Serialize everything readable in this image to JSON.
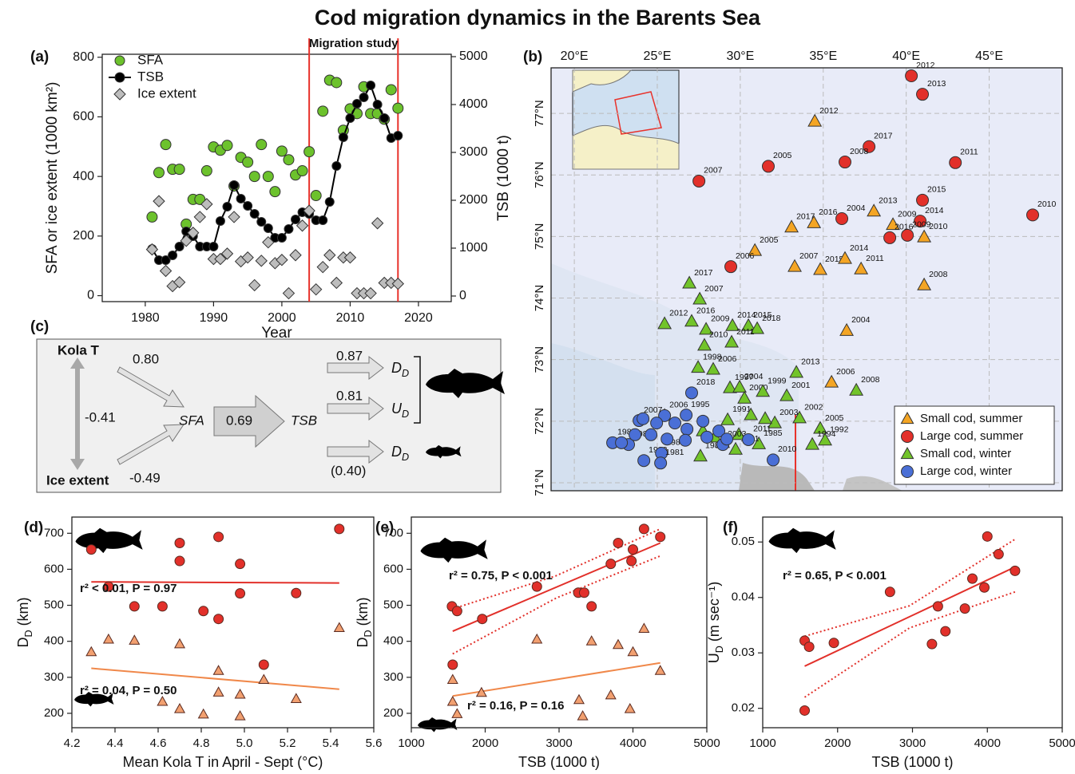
{
  "title": "Cod migration dynamics in the Barents Sea",
  "chart_data": [
    {
      "type": "timeseries",
      "panel_label": "(a)",
      "x": [
        1981,
        1982,
        1983,
        1984,
        1985,
        1986,
        1987,
        1988,
        1989,
        1990,
        1991,
        1992,
        1993,
        1994,
        1995,
        1996,
        1997,
        1998,
        1999,
        2000,
        2001,
        2002,
        2003,
        2004,
        2005,
        2006,
        2007,
        2008,
        2009,
        2010,
        2011,
        2012,
        2013,
        2014,
        2015,
        2016,
        2017
      ],
      "xlim": [
        1973.7,
        2024.8
      ],
      "xticks": [
        1980,
        1990,
        2000,
        2010,
        2020
      ],
      "ylim": [
        -20,
        810
      ],
      "yticks": [
        0,
        200,
        400,
        600,
        800
      ],
      "y2lim": [
        -117,
        5050
      ],
      "y2ticks": [
        0,
        1000,
        2000,
        3000,
        4000,
        5000
      ],
      "xlabel": "Year",
      "ylabel": "SFA or ice extent (1000 km²)",
      "y2label": "TSB (1000 t)",
      "vlines": [
        2004,
        2017
      ],
      "vline_color": "#e8322b",
      "annotation": "Migration study",
      "legend": "upper left",
      "series": [
        {
          "name": "SFA",
          "color": "#6cc22c",
          "marker": "circle",
          "values": [
            264,
            413,
            507,
            424,
            424,
            240,
            323,
            323,
            419,
            499,
            488,
            504,
            368,
            464,
            448,
            400,
            507,
            400,
            349,
            485,
            456,
            405,
            419,
            483,
            336,
            619,
            723,
            715,
            555,
            627,
            611,
            701,
            611,
            611,
            592,
            691,
            629
          ]
        },
        {
          "name": "TSB",
          "color": "#000000",
          "marker": "line-circle",
          "axis": "y2",
          "values": [
            983,
            750,
            750,
            850,
            1033,
            1350,
            1250,
            1033,
            1033,
            1033,
            1567,
            1867,
            2317,
            2033,
            1883,
            1717,
            1550,
            1417,
            1217,
            1217,
            1400,
            1600,
            1750,
            1717,
            1583,
            1583,
            1967,
            2717,
            3317,
            3717,
            4017,
            4150,
            4400,
            4000,
            3717,
            3300,
            3350
          ]
        },
        {
          "name": "Ice extent",
          "color": "#bdbdbd",
          "marker": "diamond",
          "values": [
            155,
            317,
            83,
            32,
            45,
            184,
            211,
            264,
            307,
            123,
            123,
            141,
            264,
            115,
            128,
            35,
            117,
            179,
            109,
            120,
            8,
            136,
            235,
            285,
            21,
            96,
            136,
            43,
            128,
            128,
            8,
            8,
            8,
            243,
            43,
            43,
            40
          ]
        }
      ]
    },
    {
      "type": "map",
      "panel_label": "(b)",
      "xlim": [
        18.6,
        49.4
      ],
      "ylim": [
        70.87,
        77.74
      ],
      "xticks": [
        {
          "value": 20,
          "label": "20°E"
        },
        {
          "value": 25,
          "label": "25°E"
        },
        {
          "value": 30,
          "label": "30°E"
        },
        {
          "value": 35,
          "label": "35°E"
        },
        {
          "value": 40,
          "label": "40°E"
        },
        {
          "value": 45,
          "label": "45°E"
        }
      ],
      "yticks": [
        {
          "value": 71,
          "label": "71°N"
        },
        {
          "value": 72,
          "label": "72°N"
        },
        {
          "value": 73,
          "label": "73°N"
        },
        {
          "value": 74,
          "label": "74°N"
        },
        {
          "value": 75,
          "label": "75°N"
        },
        {
          "value": 76,
          "label": "76°N"
        },
        {
          "value": 77,
          "label": "77°N"
        }
      ],
      "grid": true,
      "legend": "lower right",
      "series": [
        {
          "name": "Small cod, summer",
          "color": "#f4a524",
          "marker": "triangle",
          "label_color": "#000000",
          "x": [
            34.49,
            38.05,
            39.2,
            41.08,
            33.09,
            34.44,
            30.88,
            33.28,
            34.82,
            36.31,
            37.28,
            41.08,
            36.41,
            35.5
          ],
          "values": [
            76.87,
            75.41,
            75.19,
            74.99,
            75.15,
            75.22,
            74.77,
            74.51,
            74.46,
            74.64,
            74.47,
            74.21,
            73.47,
            72.63
          ],
          "labels": [
            "2012",
            "2013",
            "2009",
            "2010",
            "2017",
            "2016",
            "2005",
            "2007",
            "2015",
            "2014",
            "2011",
            "2008",
            "2004",
            "2006"
          ]
        },
        {
          "name": "Large cod, summer",
          "color": "#e2302a",
          "marker": "circle",
          "label_color": "#a5453c",
          "x": [
            40.31,
            40.98,
            37.76,
            36.31,
            31.69,
            42.96,
            27.51,
            40.98,
            47.62,
            36.12,
            40.84,
            40.07,
            39.01,
            29.43
          ],
          "values": [
            77.61,
            77.31,
            76.46,
            76.21,
            76.14,
            76.2,
            75.9,
            75.59,
            75.35,
            75.29,
            75.25,
            75.02,
            74.98,
            74.51
          ],
          "labels": [
            "2012",
            "2013",
            "2017",
            "2008",
            "2005",
            "2011",
            "2007",
            "2015",
            "2010",
            "2004",
            "2014",
            "2009",
            "2016",
            "2006"
          ]
        },
        {
          "name": "Small cod, winter",
          "color": "#72c42a",
          "marker": "triangle",
          "label_color": "#000000",
          "x": [
            26.93,
            27.56,
            25.44,
            27.07,
            27.94,
            29.53,
            30.49,
            31.02,
            27.84,
            29.48,
            27.46,
            28.37,
            29.38,
            29.96,
            33.38,
            32.8,
            36.99,
            30.25,
            31.36,
            33.57,
            29.24,
            34.82,
            32.08,
            31.12,
            29.72,
            34.34,
            35.11,
            27.6,
            25.44,
            27.75,
            28.47,
            30.64,
            31.5,
            29.91,
            28.95
          ],
          "values": [
            74.24,
            73.98,
            73.58,
            73.62,
            73.49,
            73.55,
            73.55,
            73.5,
            73.23,
            73.28,
            72.87,
            72.84,
            72.54,
            72.55,
            72.79,
            72.41,
            72.5,
            72.37,
            72.48,
            72.05,
            72.02,
            71.88,
            71.97,
            71.63,
            71.54,
            71.62,
            71.69,
            71.43,
            72.09,
            71.84,
            71.74,
            72.1,
            72.04,
            71.78,
            71.65
          ],
          "labels": [
            "2017",
            "2007",
            "2012",
            "2016",
            "2009",
            "2014",
            "2015",
            "2018",
            "2010",
            "2011",
            "1998",
            "2006",
            "1997",
            "2004",
            "2013",
            "2001",
            "2008",
            "2000",
            "1999",
            "2002",
            "1991",
            "2005",
            "2003",
            "1985",
            "1981",
            "1994",
            "1992",
            "1983",
            null,
            null,
            null,
            null,
            null,
            null,
            null
          ]
        },
        {
          "name": "Large cod, winter",
          "color": "#4a6fd6",
          "marker": "circle",
          "label_color": "#a5453c",
          "x": [
            27.07,
            25.44,
            23.9,
            22.31,
            23.27,
            24.19,
            25.25,
            25.2,
            26.74,
            28.95,
            30.49,
            31.98,
            24.14,
            24.96,
            26.06,
            26.79,
            27.75,
            24.62,
            25.59,
            26.69,
            27.99,
            28.71,
            29.19,
            23.66,
            22.84
          ],
          "values": [
            72.46,
            72.09,
            72.01,
            71.65,
            71.62,
            71.36,
            71.48,
            71.32,
            72.1,
            71.62,
            71.7,
            71.37,
            72.04,
            71.97,
            71.97,
            71.87,
            72.0,
            71.78,
            71.71,
            71.69,
            71.74,
            71.84,
            71.71,
            71.78,
            71.65
          ],
          "labels": [
            "2018",
            "2006",
            "2007",
            "1987",
            "1989",
            "1983",
            "1984",
            "1981",
            "1995",
            "2003",
            "2011",
            "2010",
            null,
            null,
            null,
            null,
            null,
            null,
            null,
            null,
            null,
            null,
            null,
            null,
            null
          ]
        }
      ]
    },
    {
      "type": "scatter",
      "panel_label": "(d)",
      "xlim": [
        4.2,
        5.6
      ],
      "xticks": [
        4.2,
        4.4,
        4.6,
        4.8,
        {
          "value": 5,
          "label": "5.0"
        },
        5.2,
        5.4,
        5.6
      ],
      "ylim": [
        160,
        745
      ],
      "yticks": [
        200,
        300,
        400,
        500,
        600,
        700
      ],
      "xlabel": {
        "text": "Mean Kola T in April - Sept (°C)"
      },
      "ylabel": {
        "text": "D",
        "sub": "D",
        "after": " (km)"
      },
      "series": [
        {
          "color": "#e2302a",
          "marker": "circle",
          "x": [
            4.29,
            4.37,
            4.49,
            4.62,
            4.7,
            4.7,
            4.81,
            4.88,
            4.88,
            4.98,
            4.98,
            5.09,
            5.24,
            5.44
          ],
          "values": [
            655,
            552,
            497,
            497,
            673,
            623,
            484,
            690,
            462,
            615,
            533,
            335,
            534,
            712
          ]
        },
        {
          "color": "#f2a070",
          "marker": "triangle",
          "x": [
            4.29,
            4.37,
            4.49,
            4.62,
            4.7,
            4.7,
            4.81,
            4.88,
            4.88,
            4.98,
            4.98,
            5.09,
            5.24,
            5.44
          ],
          "values": [
            370,
            405,
            402,
            232,
            392,
            212,
            197,
            318,
            258,
            252,
            192,
            293,
            240,
            437
          ]
        }
      ],
      "fits": [
        {
          "color": "#e2302a",
          "x": [
            4.29,
            5.44
          ],
          "values": [
            565,
            562
          ],
          "annotation": "r² < 0.01, P = 0.97"
        },
        {
          "color": "#f0884a",
          "x": [
            4.29,
            5.44
          ],
          "values": [
            325,
            267
          ],
          "annotation": "r² = 0.04, P = 0.50"
        }
      ]
    },
    {
      "type": "scatter",
      "panel_label": "(e)",
      "xlim": [
        1000,
        5000
      ],
      "xticks": [
        1000,
        2000,
        3000,
        4000,
        5000
      ],
      "ylim": [
        160,
        745
      ],
      "yticks": [
        200,
        300,
        400,
        500,
        600,
        700
      ],
      "xlabel": {
        "text": "TSB (1000 t)"
      },
      "ylabel": {
        "text": "D",
        "sub": "D",
        "after": " (km)"
      },
      "series": [
        {
          "color": "#e2302a",
          "marker": "circle",
          "x": [
            1550,
            1560,
            1620,
            1960,
            2700,
            3260,
            3340,
            3440,
            3700,
            3800,
            3980,
            4000,
            4150,
            4370
          ],
          "values": [
            497,
            335,
            484,
            462,
            552,
            535,
            535,
            497,
            615,
            673,
            623,
            655,
            712,
            690
          ]
        },
        {
          "color": "#f2a070",
          "marker": "triangle",
          "x": [
            1560,
            1560,
            1620,
            1950,
            2700,
            3270,
            3320,
            3440,
            3700,
            3800,
            3960,
            4000,
            4150,
            4370
          ],
          "values": [
            293,
            232,
            198,
            257,
            405,
            237,
            192,
            400,
            250,
            390,
            212,
            370,
            435,
            318
          ]
        }
      ],
      "fits": [
        {
          "color": "#e2302a",
          "x": [
            1560,
            4370
          ],
          "values": [
            428,
            673
          ],
          "annotation": "r² = 0.75, P < 0.001"
        },
        {
          "color": "#f0884a",
          "x": [
            1560,
            4370
          ],
          "values": [
            248,
            340
          ],
          "annotation": "r² = 0.16, P = 0.16"
        }
      ],
      "ci": [
        {
          "color": "#e2302a",
          "x": [
            1560,
            2960,
            4370
          ],
          "values": [
            490,
            582,
            712
          ]
        },
        {
          "color": "#e2302a",
          "x": [
            1560,
            2960,
            4370
          ],
          "values": [
            365,
            520,
            637
          ]
        }
      ]
    },
    {
      "type": "scatter",
      "panel_label": "(f)",
      "xlim": [
        1000,
        5000
      ],
      "xticks": [
        1000,
        2000,
        3000,
        4000,
        5000
      ],
      "ylim": [
        0.0165,
        0.0545
      ],
      "yticks": [
        0.02,
        0.03,
        0.04,
        0.05
      ],
      "xlabel": {
        "text": "TSB (1000 t)"
      },
      "ylabel": {
        "text": "U",
        "sub": "D",
        "after": " (m sec⁻¹)"
      },
      "series": [
        {
          "color": "#e2302a",
          "marker": "circle",
          "x": [
            1560,
            1620,
            1950,
            2700,
            3260,
            3340,
            3440,
            3700,
            3800,
            3960,
            4000,
            4150,
            4370,
            1560
          ],
          "values": [
            0.0322,
            0.0311,
            0.0318,
            0.041,
            0.0316,
            0.0384,
            0.0339,
            0.038,
            0.0434,
            0.0418,
            0.051,
            0.0478,
            0.0448,
            0.0196
          ]
        }
      ],
      "fits": [
        {
          "color": "#e2302a",
          "x": [
            1560,
            4370
          ],
          "values": [
            0.0276,
            0.0455
          ],
          "annotation": "r² = 0.65, P < 0.001"
        }
      ],
      "ci": [
        {
          "color": "#e2302a",
          "x": [
            1560,
            2960,
            4370
          ],
          "values": [
            0.033,
            0.0385,
            0.0505
          ]
        },
        {
          "color": "#e2302a",
          "x": [
            1560,
            2960,
            4370
          ],
          "values": [
            0.022,
            0.0345,
            0.041
          ]
        }
      ]
    }
  ],
  "path_diagram": {
    "panel_label": "(c)",
    "kola_t": "Kola T",
    "ice_extent": "Ice extent",
    "sfa": "SFA",
    "tsb": "TSB",
    "coefficients": [
      "0.80",
      "-0.41",
      "-0.49",
      "0.69",
      "0.87",
      "0.81",
      "(0.40)"
    ],
    "outcomes": [
      {
        "text": "D",
        "sub": "D"
      },
      {
        "text": "U",
        "sub": "D"
      },
      {
        "text": "D",
        "sub": "D"
      }
    ]
  }
}
